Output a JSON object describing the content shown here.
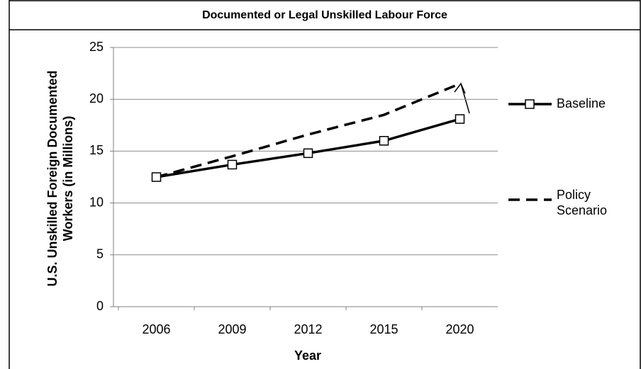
{
  "chart_data": {
    "type": "line",
    "title": "Documented or Legal Unskilled Labour Force",
    "x_label": "Year",
    "y_label": "U.S. Unskilled Foreign Documented Workers (in Millions)",
    "categories": [
      "2006",
      "2009",
      "2012",
      "2015",
      "2020"
    ],
    "series": [
      {
        "name": "Baseline",
        "color": "#000000",
        "dashed": false,
        "markers": true,
        "values": [
          12.5,
          13.7,
          14.8,
          16.0,
          18.1
        ]
      },
      {
        "name": "Policy Scenario",
        "color": "#000000",
        "dashed": true,
        "markers": false,
        "values": [
          12.5,
          14.5,
          16.6,
          18.5,
          21.5
        ]
      }
    ],
    "ylim": [
      0,
      25
    ],
    "yticks": [
      0,
      5,
      10,
      15,
      20,
      25
    ],
    "grid": true,
    "legend": "right"
  }
}
